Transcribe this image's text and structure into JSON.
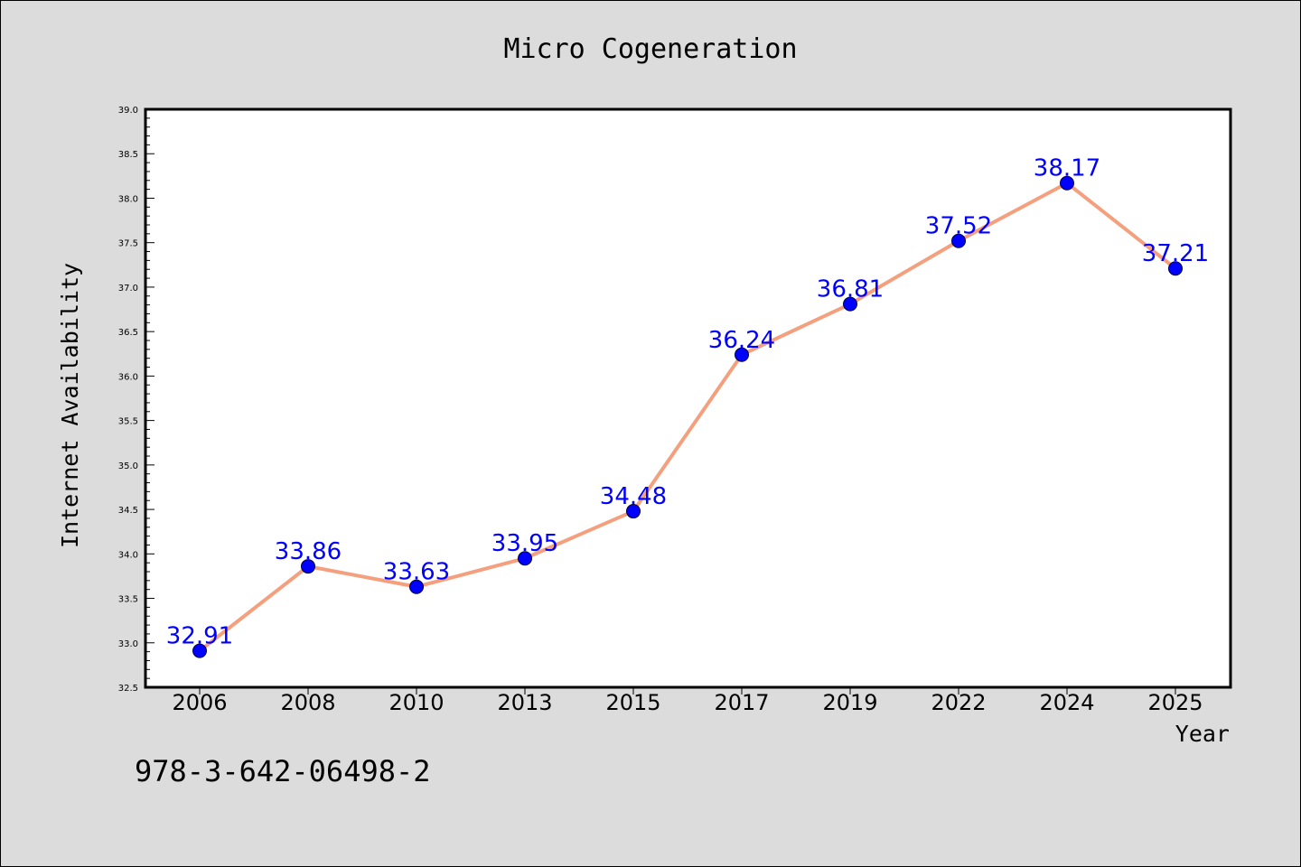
{
  "chart_data": {
    "type": "line",
    "title": "Micro Cogeneration",
    "xlabel": "Year",
    "ylabel": "Internet Availability",
    "categories": [
      "2006",
      "2008",
      "2010",
      "2013",
      "2015",
      "2017",
      "2019",
      "2022",
      "2024",
      "2025"
    ],
    "series": [
      {
        "values": [
          32.91,
          33.86,
          33.63,
          33.95,
          34.48,
          36.24,
          36.81,
          37.52,
          38.17,
          37.21
        ],
        "labels": [
          "32.91",
          "33.86",
          "33.63",
          "33.95",
          "34.48",
          "36.24",
          "36.81",
          "37.52",
          "38.17",
          "37.21"
        ]
      }
    ],
    "ylim": [
      32.5,
      39.0
    ],
    "yticks": [
      "32.5",
      "33.0",
      "33.5",
      "34.0",
      "34.5",
      "35.0",
      "35.5",
      "36.0",
      "36.5",
      "37.0",
      "37.5",
      "38.0",
      "38.5",
      "39.0"
    ],
    "grid": false,
    "legend": "none",
    "colors": {
      "line": "#f4a07e",
      "marker": "#0000ff",
      "data_label": "#0000ff",
      "plot_background": "#ffffff",
      "figure_background": "#dcdcdc"
    }
  },
  "annotation": "978-3-642-06498-2"
}
